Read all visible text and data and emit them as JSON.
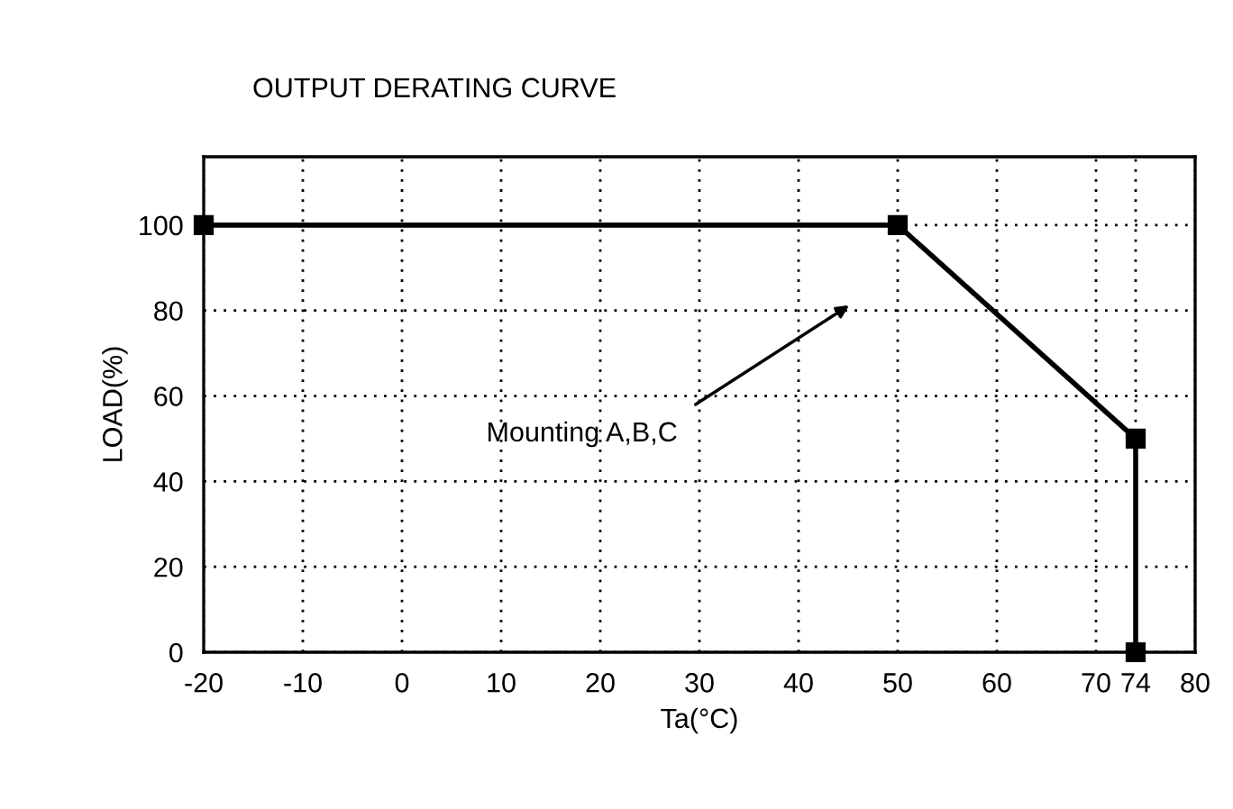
{
  "chart_data": {
    "type": "line",
    "title": "OUTPUT DERATING CURVE",
    "xlabel": "Ta(°C)",
    "ylabel": "LOAD(%)",
    "x": [
      -20,
      50,
      74,
      74
    ],
    "series": [
      {
        "color": "#000000",
        "values": [
          100,
          100,
          50,
          0
        ]
      }
    ],
    "xlim": [
      -20,
      80
    ],
    "xticks": [
      -20,
      -10,
      0,
      10,
      20,
      30,
      40,
      50,
      60,
      70,
      74,
      80
    ],
    "ylim": [
      0,
      116
    ],
    "yticks": [
      0,
      20,
      40,
      60,
      80,
      100
    ],
    "grid": true,
    "marker": "square",
    "line_style": "solid",
    "legend": false,
    "annotations": [
      "Mounting A,B,C"
    ]
  }
}
